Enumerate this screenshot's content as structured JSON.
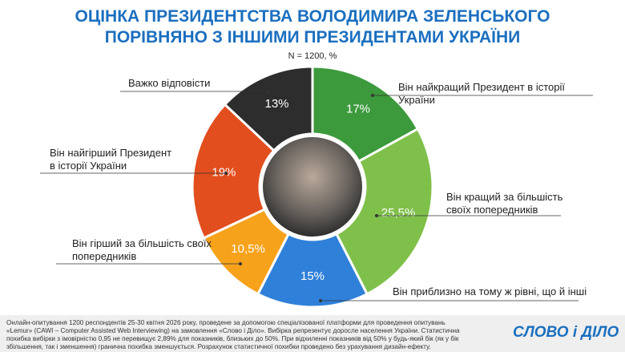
{
  "chart_data": {
    "type": "donut",
    "title": "ОЦІНКА ПРЕЗИДЕНТСТВА ВОЛОДИМИРА ЗЕЛЕНСЬКОГО ПОРІВНЯНО З ІНШИМИ ПРЕЗИДЕНТАМИ УКРАЇНИ",
    "subtitle": "N = 1200, %",
    "categories": [
      "Він найкращий Президент в історії України",
      "Він кращий за більшість своїх попередників",
      "Він приблизно на тому ж рівні, що й інші",
      "Він гірший за більшість своїх попередників",
      "Він найгірший Президент в історії України",
      "Важко відповісти"
    ],
    "values": [
      17,
      25.5,
      15,
      10.5,
      19,
      13
    ],
    "value_labels": [
      "17%",
      "25,5%",
      "15%",
      "10,5%",
      "19%",
      "13%"
    ],
    "colors": [
      "#3c9a3c",
      "#7fc04a",
      "#2f80d9",
      "#f7a21b",
      "#e24e1e",
      "#2d2d2d"
    ],
    "footnote": "Онлайн-опитування 1200 респондентів 25-30 квітня 2026 року, проведене за допомогою спеціалізованої платформи для проведення опитувань «Lemur» (CAWI – Computer Assisted Web Interviewing) на замовлення «Слово і Діло». Вибірка репрезентує доросле населення України. Статистична похибка вибірки з імовірністю 0,95 не перевищує 2,89% для показників, близьких до 50%. При відхиленні показників від 50% у будь-який бік (як у бік збільшення, так і зменшення) гранична похибка зменшується. Розрахунок статистичної похибки проведено без урахування дизайн-ефекту.",
    "logo": "СЛОВО і ДІЛО"
  }
}
